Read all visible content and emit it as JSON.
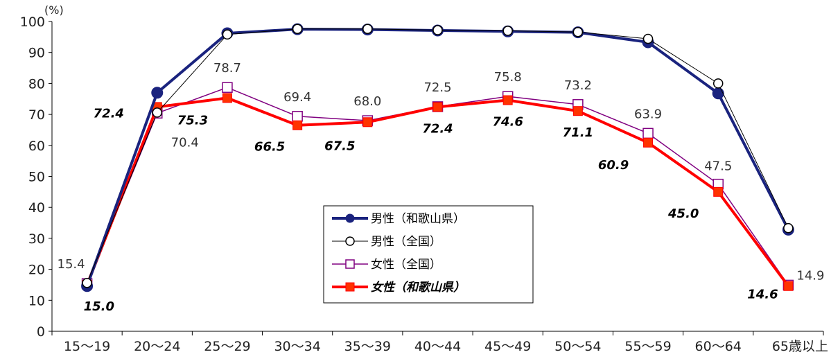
{
  "chart_data": {
    "type": "line",
    "unit_label": "(%)",
    "categories": [
      "15～19",
      "20～24",
      "25～29",
      "30～34",
      "35～39",
      "40～44",
      "45～49",
      "50～54",
      "55～59",
      "60～64",
      "65歳以上"
    ],
    "y_ticks": [
      "0",
      "10",
      "20",
      "30",
      "40",
      "50",
      "60",
      "70",
      "80",
      "90",
      "100"
    ],
    "ylim": [
      0,
      100
    ],
    "grid": false,
    "legend_position": "center",
    "series": [
      {
        "name": "男性（和歌山県）",
        "color": "#1a237e",
        "marker": "filled-circle",
        "values": [
          14.6,
          77.0,
          96.2,
          97.5,
          97.4,
          97.1,
          96.8,
          96.5,
          93.3,
          76.8,
          32.8
        ]
      },
      {
        "name": "男性（全国）",
        "color": "#000000",
        "marker": "open-circle",
        "values": [
          15.6,
          70.6,
          95.8,
          97.6,
          97.6,
          97.2,
          97.0,
          96.6,
          94.4,
          80.0,
          33.3
        ]
      },
      {
        "name": "女性（全国）",
        "color": "#800080",
        "marker": "open-square",
        "values": [
          15.4,
          70.4,
          78.7,
          69.4,
          68.0,
          72.5,
          75.8,
          73.2,
          63.9,
          47.5,
          14.9
        ],
        "labels": [
          "15.4",
          "70.4",
          "78.7",
          "69.4",
          "68.0",
          "72.5",
          "75.8",
          "73.2",
          "63.9",
          "47.5",
          "14.9"
        ]
      },
      {
        "name": "女性（和歌山県）",
        "color": "#ff0000",
        "marker": "filled-square",
        "values": [
          15.0,
          72.4,
          75.3,
          66.5,
          67.5,
          72.4,
          74.6,
          71.1,
          60.9,
          45.0,
          14.6
        ],
        "labels": [
          "15.0",
          "72.4",
          "75.3",
          "66.5",
          "67.5",
          "72.4",
          "74.6",
          "71.1",
          "60.9",
          "45.0",
          "14.6"
        ]
      }
    ]
  }
}
